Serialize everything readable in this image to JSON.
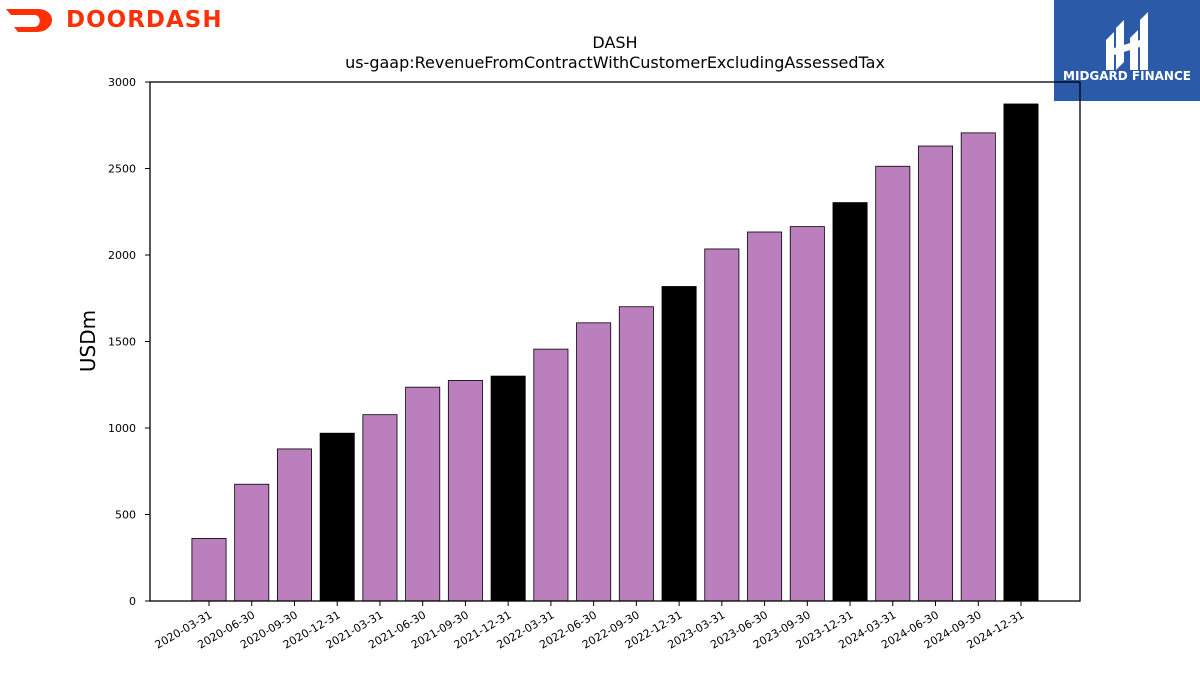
{
  "brand": {
    "left_logo_text": "DOORDASH",
    "left_logo_color": "#ff3008",
    "right_logo_text": "MIDGARD FINANCE",
    "right_logo_bg": "#2a5aa8",
    "right_logo_icon": "midgard-h-mark-icon"
  },
  "colors": {
    "quarter_bar": "#bb7fbd",
    "year_end_bar": "#000000",
    "bar_edge": "#000000"
  },
  "chart_data": {
    "type": "bar",
    "title": "DASH",
    "subtitle": "us-gaap:RevenueFromContractWithCustomerExcludingAssessedTax",
    "xlabel": "",
    "ylabel": "USDm",
    "ylim": [
      0,
      3000
    ],
    "yticks": [
      0,
      500,
      1000,
      1500,
      2000,
      2500,
      3000
    ],
    "grid": false,
    "categories": [
      "2020-03-31",
      "2020-06-30",
      "2020-09-30",
      "2020-12-31",
      "2021-03-31",
      "2021-06-30",
      "2021-09-30",
      "2021-12-31",
      "2022-03-31",
      "2022-06-30",
      "2022-09-30",
      "2022-12-31",
      "2023-03-31",
      "2023-06-30",
      "2023-09-30",
      "2023-12-31",
      "2024-03-31",
      "2024-06-30",
      "2024-09-30",
      "2024-12-31"
    ],
    "values": [
      362,
      675,
      879,
      970,
      1077,
      1236,
      1275,
      1300,
      1456,
      1608,
      1701,
      1818,
      2035,
      2133,
      2164,
      2303,
      2513,
      2630,
      2706,
      2873
    ]
  }
}
